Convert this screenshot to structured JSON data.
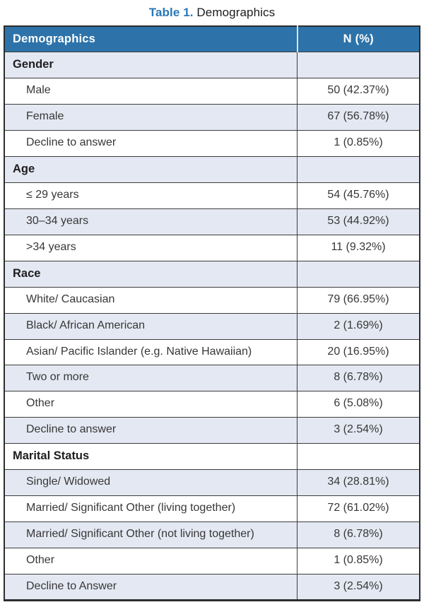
{
  "caption": {
    "label": "Table 1.",
    "text": "Demographics"
  },
  "table": {
    "headers": [
      "Demographics",
      "N (%)"
    ],
    "sections": [
      {
        "name": "Gender",
        "rows": [
          {
            "label": "Male",
            "value": "50 (42.37%)"
          },
          {
            "label": "Female",
            "value": "67 (56.78%)"
          },
          {
            "label": "Decline to answer",
            "value": "1 (0.85%)"
          }
        ]
      },
      {
        "name": "Age",
        "rows": [
          {
            "label": "≤ 29 years",
            "value": "54 (45.76%)"
          },
          {
            "label": "30–34 years",
            "value": "53 (44.92%)"
          },
          {
            "label": ">34 years",
            "value": "11 (9.32%)"
          }
        ]
      },
      {
        "name": "Race",
        "rows": [
          {
            "label": "White/ Caucasian",
            "value": "79 (66.95%)"
          },
          {
            "label": "Black/ African American",
            "value": "2 (1.69%)"
          },
          {
            "label": "Asian/ Pacific Islander (e.g. Native Hawaiian)",
            "value": "20 (16.95%)"
          },
          {
            "label": "Two or more",
            "value": "8 (6.78%)"
          },
          {
            "label": "Other",
            "value": "6 (5.08%)"
          },
          {
            "label": "Decline to answer",
            "value": "3 (2.54%)"
          }
        ]
      },
      {
        "name": "Marital Status",
        "rows": [
          {
            "label": "Single/ Widowed",
            "value": "34 (28.81%)"
          },
          {
            "label": "Married/ Significant Other (living together)",
            "value": "72 (61.02%)"
          },
          {
            "label": "Married/ Significant Other (not living together)",
            "value": "8 (6.78%)"
          },
          {
            "label": "Other",
            "value": "1 (0.85%)"
          },
          {
            "label": "Decline to Answer",
            "value": "3 (2.54%)"
          }
        ]
      }
    ]
  },
  "colors": {
    "header_bg": "#2d73a9",
    "header_text": "#ffffff",
    "alt_row_bg": "#e4e8f2",
    "caption_accent": "#2878b8",
    "outer_border": "#2d2d2d"
  }
}
